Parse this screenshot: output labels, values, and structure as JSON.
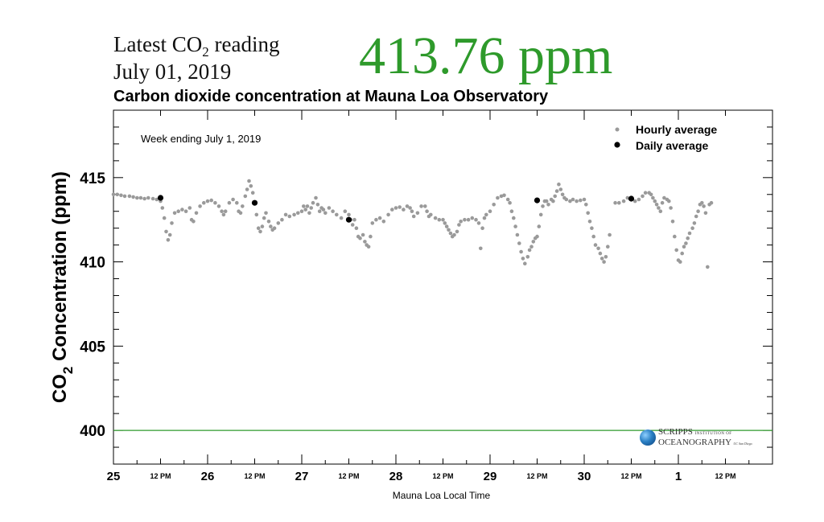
{
  "header": {
    "reading_prefix": "Latest CO",
    "reading_sub": "2",
    "reading_suffix": " reading",
    "date": "July 01, 2019",
    "value": "413.76 ppm"
  },
  "logo": {
    "line1": "SCRIPPS",
    "line1_small": "INSTITUTION OF",
    "line2": "OCEANOGRAPHY",
    "line2_small": "UC San Diego"
  },
  "colors": {
    "value_green": "#2e9a2b",
    "hourly_gray": "#9a9a9a",
    "daily_black": "#000000",
    "reference_line": "#2e9a2b"
  },
  "chart_data": {
    "type": "scatter",
    "title": "Carbon dioxide concentration at Mauna Loa Observatory",
    "annotation": "Week ending July 1, 2019",
    "xlabel": "Mauna Loa Local Time",
    "ylabel_main": "CO",
    "ylabel_sub": "2",
    "ylabel_tail": " Concentration (ppm)",
    "ylim": [
      398,
      419
    ],
    "yticks": [
      400,
      405,
      410,
      415
    ],
    "xlim": [
      0,
      7
    ],
    "x_ticks_major": [
      {
        "x": 0,
        "label": "25"
      },
      {
        "x": 1,
        "label": "26"
      },
      {
        "x": 2,
        "label": "27"
      },
      {
        "x": 3,
        "label": "28"
      },
      {
        "x": 4,
        "label": "29"
      },
      {
        "x": 5,
        "label": "30"
      },
      {
        "x": 6,
        "label": "1"
      }
    ],
    "x_ticks_minor": [
      {
        "x": 0.5,
        "label": "12 PM"
      },
      {
        "x": 1.5,
        "label": "12 PM"
      },
      {
        "x": 2.5,
        "label": "12 PM"
      },
      {
        "x": 3.5,
        "label": "12 PM"
      },
      {
        "x": 4.5,
        "label": "12 PM"
      },
      {
        "x": 5.5,
        "label": "12 PM"
      },
      {
        "x": 6.5,
        "label": "12 PM"
      }
    ],
    "reference_line": {
      "y": 400
    },
    "legend": {
      "placement": "top-right",
      "entries": [
        "Hourly average",
        "Daily average"
      ]
    },
    "series": [
      {
        "name": "Hourly average",
        "points": [
          [
            0.0,
            414.0
          ],
          [
            0.04,
            414.0
          ],
          [
            0.08,
            413.95
          ],
          [
            0.12,
            413.9
          ],
          [
            0.17,
            413.9
          ],
          [
            0.21,
            413.85
          ],
          [
            0.25,
            413.8
          ],
          [
            0.29,
            413.8
          ],
          [
            0.33,
            413.75
          ],
          [
            0.37,
            413.8
          ],
          [
            0.42,
            413.75
          ],
          [
            0.46,
            413.7
          ],
          [
            0.5,
            413.6
          ],
          [
            0.52,
            413.2
          ],
          [
            0.54,
            412.6
          ],
          [
            0.56,
            411.8
          ],
          [
            0.58,
            411.3
          ],
          [
            0.6,
            411.6
          ],
          [
            0.62,
            412.3
          ],
          [
            0.65,
            412.9
          ],
          [
            0.69,
            413.0
          ],
          [
            0.73,
            413.1
          ],
          [
            0.77,
            413.0
          ],
          [
            0.81,
            413.2
          ],
          [
            0.83,
            412.5
          ],
          [
            0.85,
            412.4
          ],
          [
            0.88,
            412.9
          ],
          [
            0.92,
            413.3
          ],
          [
            0.96,
            413.5
          ],
          [
            1.0,
            413.6
          ],
          [
            1.04,
            413.65
          ],
          [
            1.08,
            413.5
          ],
          [
            1.12,
            413.3
          ],
          [
            1.15,
            413.0
          ],
          [
            1.17,
            412.8
          ],
          [
            1.19,
            413.0
          ],
          [
            1.23,
            413.5
          ],
          [
            1.27,
            413.7
          ],
          [
            1.31,
            413.5
          ],
          [
            1.33,
            413.0
          ],
          [
            1.35,
            412.9
          ],
          [
            1.37,
            413.3
          ],
          [
            1.4,
            413.9
          ],
          [
            1.42,
            414.3
          ],
          [
            1.44,
            414.8
          ],
          [
            1.46,
            414.5
          ],
          [
            1.48,
            414.1
          ],
          [
            1.5,
            413.5
          ],
          [
            1.52,
            412.8
          ],
          [
            1.54,
            412.0
          ],
          [
            1.56,
            411.8
          ],
          [
            1.58,
            412.1
          ],
          [
            1.6,
            412.6
          ],
          [
            1.62,
            412.9
          ],
          [
            1.65,
            412.4
          ],
          [
            1.67,
            412.1
          ],
          [
            1.69,
            411.9
          ],
          [
            1.71,
            412.0
          ],
          [
            1.75,
            412.3
          ],
          [
            1.79,
            412.5
          ],
          [
            1.83,
            412.8
          ],
          [
            1.87,
            412.7
          ],
          [
            1.92,
            412.8
          ],
          [
            1.96,
            412.9
          ],
          [
            2.0,
            413.0
          ],
          [
            2.02,
            413.3
          ],
          [
            2.04,
            413.1
          ],
          [
            2.06,
            413.3
          ],
          [
            2.08,
            412.9
          ],
          [
            2.1,
            413.2
          ],
          [
            2.12,
            413.5
          ],
          [
            2.15,
            413.8
          ],
          [
            2.17,
            413.4
          ],
          [
            2.19,
            413.0
          ],
          [
            2.21,
            413.2
          ],
          [
            2.23,
            413.1
          ],
          [
            2.25,
            412.9
          ],
          [
            2.29,
            413.2
          ],
          [
            2.33,
            413.0
          ],
          [
            2.37,
            412.8
          ],
          [
            2.42,
            412.6
          ],
          [
            2.46,
            413.0
          ],
          [
            2.5,
            412.8
          ],
          [
            2.52,
            412.5
          ],
          [
            2.54,
            412.2
          ],
          [
            2.56,
            412.5
          ],
          [
            2.58,
            412.0
          ],
          [
            2.6,
            411.5
          ],
          [
            2.62,
            411.4
          ],
          [
            2.65,
            411.6
          ],
          [
            2.67,
            411.2
          ],
          [
            2.69,
            411.0
          ],
          [
            2.71,
            410.9
          ],
          [
            2.73,
            411.5
          ],
          [
            2.75,
            412.3
          ],
          [
            2.79,
            412.5
          ],
          [
            2.83,
            412.6
          ],
          [
            2.87,
            412.4
          ],
          [
            2.92,
            412.8
          ],
          [
            2.96,
            413.1
          ],
          [
            3.0,
            413.2
          ],
          [
            3.04,
            413.25
          ],
          [
            3.08,
            413.1
          ],
          [
            3.12,
            413.3
          ],
          [
            3.15,
            413.2
          ],
          [
            3.17,
            413.0
          ],
          [
            3.19,
            412.7
          ],
          [
            3.23,
            412.9
          ],
          [
            3.27,
            413.3
          ],
          [
            3.31,
            413.3
          ],
          [
            3.33,
            413.0
          ],
          [
            3.35,
            412.7
          ],
          [
            3.37,
            412.8
          ],
          [
            3.42,
            412.6
          ],
          [
            3.46,
            412.5
          ],
          [
            3.5,
            412.5
          ],
          [
            3.52,
            412.3
          ],
          [
            3.54,
            412.1
          ],
          [
            3.56,
            411.9
          ],
          [
            3.58,
            411.7
          ],
          [
            3.6,
            411.5
          ],
          [
            3.62,
            411.6
          ],
          [
            3.65,
            411.8
          ],
          [
            3.67,
            412.2
          ],
          [
            3.69,
            412.4
          ],
          [
            3.73,
            412.5
          ],
          [
            3.77,
            412.5
          ],
          [
            3.81,
            412.6
          ],
          [
            3.85,
            412.5
          ],
          [
            3.88,
            412.3
          ],
          [
            3.9,
            410.8
          ],
          [
            3.92,
            412.0
          ],
          [
            3.94,
            412.6
          ],
          [
            3.96,
            412.8
          ],
          [
            4.0,
            413.0
          ],
          [
            4.04,
            413.4
          ],
          [
            4.08,
            413.8
          ],
          [
            4.12,
            413.9
          ],
          [
            4.15,
            413.95
          ],
          [
            4.19,
            413.7
          ],
          [
            4.21,
            413.5
          ],
          [
            4.23,
            413.0
          ],
          [
            4.25,
            412.6
          ],
          [
            4.27,
            412.1
          ],
          [
            4.29,
            411.6
          ],
          [
            4.31,
            411.1
          ],
          [
            4.33,
            410.6
          ],
          [
            4.35,
            410.2
          ],
          [
            4.37,
            409.9
          ],
          [
            4.4,
            410.3
          ],
          [
            4.42,
            410.7
          ],
          [
            4.44,
            410.9
          ],
          [
            4.46,
            411.2
          ],
          [
            4.48,
            411.4
          ],
          [
            4.5,
            411.5
          ],
          [
            4.52,
            412.1
          ],
          [
            4.54,
            412.8
          ],
          [
            4.56,
            413.3
          ],
          [
            4.58,
            413.6
          ],
          [
            4.6,
            413.6
          ],
          [
            4.62,
            413.4
          ],
          [
            4.65,
            413.7
          ],
          [
            4.67,
            413.6
          ],
          [
            4.69,
            413.9
          ],
          [
            4.71,
            414.2
          ],
          [
            4.73,
            414.6
          ],
          [
            4.75,
            414.3
          ],
          [
            4.77,
            414.0
          ],
          [
            4.79,
            413.8
          ],
          [
            4.81,
            413.7
          ],
          [
            4.85,
            413.6
          ],
          [
            4.88,
            413.7
          ],
          [
            4.92,
            413.6
          ],
          [
            4.96,
            413.65
          ],
          [
            5.0,
            413.7
          ],
          [
            5.02,
            413.4
          ],
          [
            5.04,
            412.9
          ],
          [
            5.06,
            412.4
          ],
          [
            5.08,
            412.0
          ],
          [
            5.1,
            411.5
          ],
          [
            5.12,
            411.0
          ],
          [
            5.15,
            410.8
          ],
          [
            5.17,
            410.5
          ],
          [
            5.19,
            410.2
          ],
          [
            5.21,
            410.0
          ],
          [
            5.23,
            410.3
          ],
          [
            5.25,
            410.9
          ],
          [
            5.27,
            411.6
          ],
          [
            5.33,
            413.5
          ],
          [
            5.37,
            413.5
          ],
          [
            5.42,
            413.6
          ],
          [
            5.46,
            413.8
          ],
          [
            5.5,
            413.7
          ],
          [
            5.54,
            413.6
          ],
          [
            5.58,
            413.7
          ],
          [
            5.62,
            413.9
          ],
          [
            5.65,
            414.1
          ],
          [
            5.69,
            414.1
          ],
          [
            5.71,
            414.0
          ],
          [
            5.73,
            413.8
          ],
          [
            5.75,
            413.6
          ],
          [
            5.77,
            413.4
          ],
          [
            5.79,
            413.2
          ],
          [
            5.81,
            413.0
          ],
          [
            5.83,
            413.5
          ],
          [
            5.85,
            413.8
          ],
          [
            5.88,
            413.7
          ],
          [
            5.9,
            413.6
          ],
          [
            5.92,
            413.2
          ],
          [
            5.94,
            412.4
          ],
          [
            5.96,
            411.5
          ],
          [
            5.98,
            410.7
          ],
          [
            6.0,
            410.1
          ],
          [
            6.02,
            410.0
          ],
          [
            6.04,
            410.5
          ],
          [
            6.06,
            410.9
          ],
          [
            6.08,
            411.1
          ],
          [
            6.1,
            411.4
          ],
          [
            6.12,
            411.7
          ],
          [
            6.15,
            412.0
          ],
          [
            6.17,
            412.3
          ],
          [
            6.19,
            412.7
          ],
          [
            6.21,
            413.0
          ],
          [
            6.23,
            413.4
          ],
          [
            6.25,
            413.5
          ],
          [
            6.27,
            413.3
          ],
          [
            6.29,
            412.9
          ],
          [
            6.31,
            409.7
          ],
          [
            6.33,
            413.4
          ],
          [
            6.35,
            413.5
          ]
        ]
      },
      {
        "name": "Daily average",
        "points": [
          [
            0.5,
            413.8
          ],
          [
            1.5,
            413.5
          ],
          [
            2.5,
            412.5
          ],
          [
            4.5,
            413.65
          ],
          [
            5.5,
            413.75
          ]
        ]
      }
    ]
  }
}
